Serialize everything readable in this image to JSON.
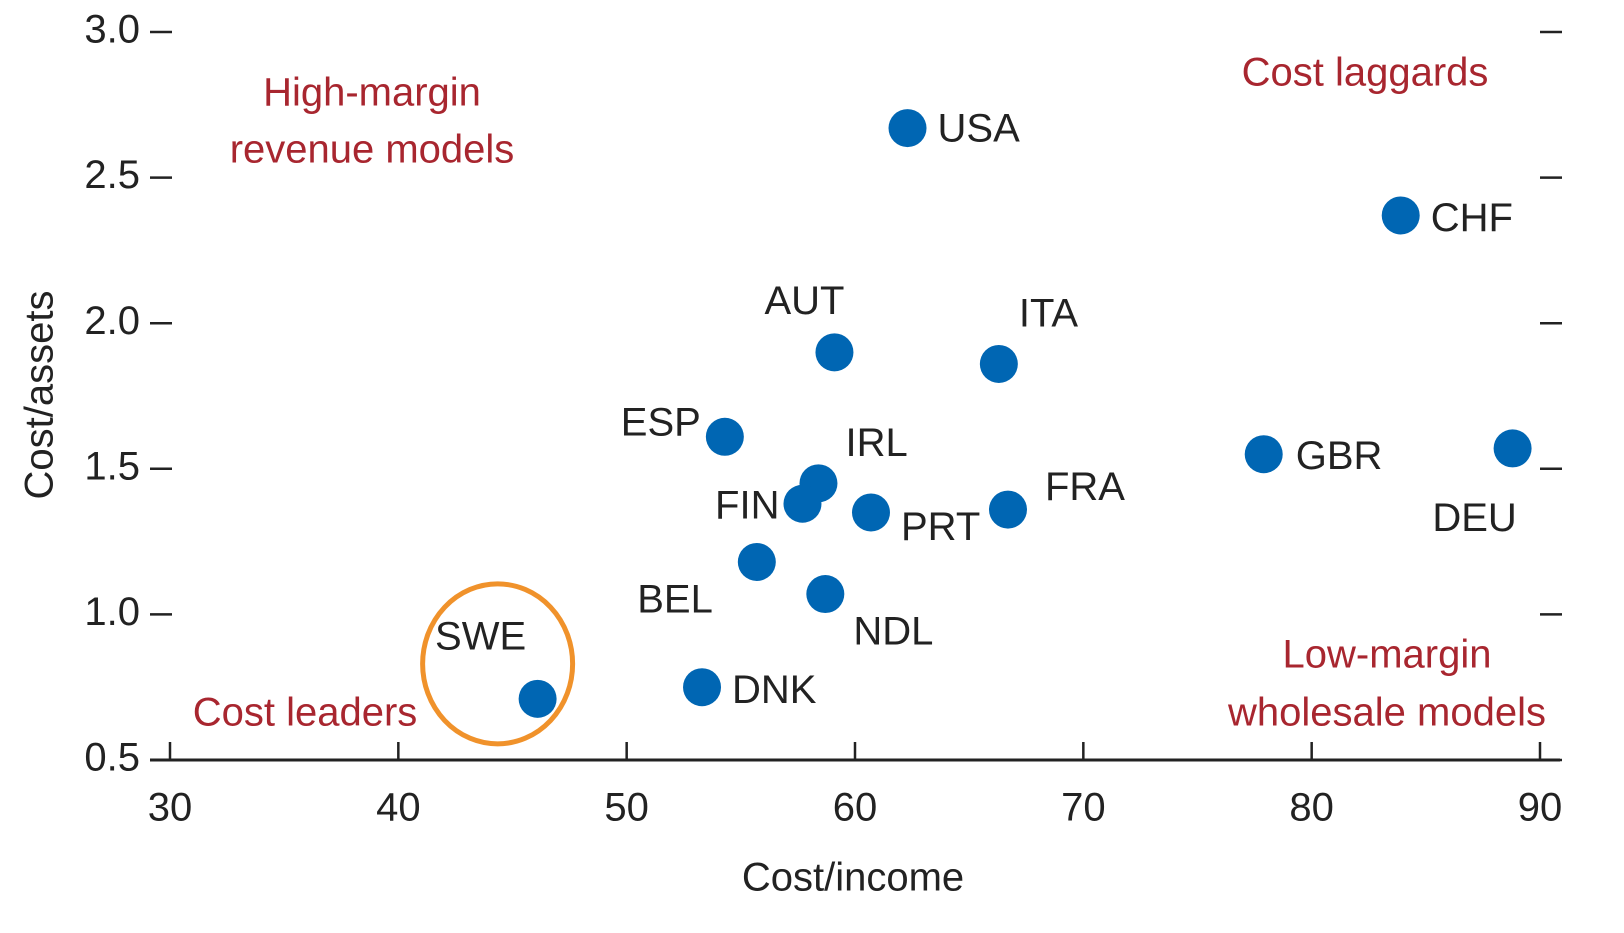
{
  "chart_data": {
    "type": "scatter",
    "x_label": "Cost/income",
    "y_label": "Cost/assets",
    "labels": [
      "USA",
      "CHF",
      "AUT",
      "ITA",
      "ESP",
      "IRL",
      "FIN",
      "PRT",
      "FRA",
      "GBR",
      "DEU",
      "BEL",
      "NDL",
      "DNK",
      "SWE"
    ],
    "x": [
      62.3,
      83.9,
      59.1,
      66.3,
      54.3,
      58.4,
      57.7,
      60.7,
      66.7,
      77.9,
      88.8,
      55.7,
      58.7,
      53.3,
      46.1
    ],
    "values": [
      2.67,
      2.37,
      1.9,
      1.86,
      1.61,
      1.45,
      1.38,
      1.35,
      1.36,
      1.55,
      1.57,
      1.18,
      1.07,
      0.75,
      0.71
    ],
    "color": "#0066b3",
    "annotations": [
      "High-margin",
      "revenue models",
      "Cost laggards",
      "Cost leaders",
      "Low-margin",
      "wholesale models"
    ],
    "annotation_color": "#a8262f",
    "highlight_color": "#f0922b",
    "xlim": [
      30,
      90
    ],
    "xticks": [
      30,
      40,
      50,
      60,
      70,
      80,
      90
    ],
    "ylim": [
      0.5,
      3.0
    ],
    "yticks": [
      0.5,
      {
        "value": 1,
        "label": "1.0"
      },
      1.5,
      {
        "value": 2,
        "label": "2.0"
      },
      2.5,
      {
        "value": 3,
        "label": "3.0"
      }
    ]
  }
}
